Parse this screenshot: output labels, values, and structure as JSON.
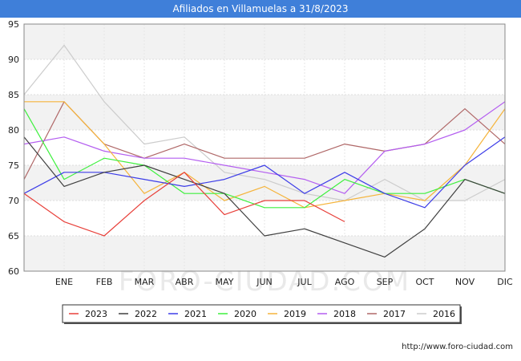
{
  "page": {
    "title": "Afiliados en Villamuelas a 31/8/2023",
    "watermark": "FORO-CIUDAD.COM",
    "source_url": "http://www.foro-ciudad.com"
  },
  "chart_data": {
    "type": "line",
    "title": "Afiliados en Villamuelas a 31/8/2023",
    "categories": [
      "",
      "ENE",
      "FEB",
      "MAR",
      "ABR",
      "MAY",
      "JUN",
      "JUL",
      "AGO",
      "SEP",
      "OCT",
      "NOV",
      "DIC"
    ],
    "ylim": [
      60,
      95
    ],
    "yticks": [
      60,
      65,
      70,
      75,
      80,
      85,
      90,
      95
    ],
    "grid": true,
    "legend_position": "bottom",
    "series": [
      {
        "name": "2023",
        "color": "#e8403a",
        "values": [
          71,
          67,
          65,
          70,
          74,
          68,
          70,
          70,
          67,
          null,
          null,
          null,
          null
        ]
      },
      {
        "name": "2022",
        "color": "#404040",
        "values": [
          79,
          72,
          74,
          75,
          73,
          71,
          65,
          66,
          64,
          62,
          66,
          73,
          71
        ]
      },
      {
        "name": "2021",
        "color": "#3e3ee8",
        "values": [
          71,
          74,
          74,
          73,
          72,
          73,
          75,
          71,
          74,
          71,
          69,
          75,
          79
        ]
      },
      {
        "name": "2020",
        "color": "#3ef03e",
        "values": [
          83,
          73,
          76,
          75,
          71,
          71,
          69,
          69,
          73,
          71,
          71,
          73,
          71
        ]
      },
      {
        "name": "2019",
        "color": "#f5b43c",
        "values": [
          84,
          84,
          78,
          71,
          74,
          70,
          72,
          69,
          70,
          71,
          70,
          75,
          83
        ]
      },
      {
        "name": "2018",
        "color": "#b45ef0",
        "values": [
          78,
          79,
          77,
          76,
          76,
          75,
          74,
          73,
          71,
          77,
          78,
          80,
          84
        ]
      },
      {
        "name": "2017",
        "color": "#b06868",
        "values": [
          73,
          84,
          78,
          76,
          78,
          76,
          76,
          76,
          78,
          77,
          78,
          83,
          78
        ]
      },
      {
        "name": "2016",
        "color": "#cccccc",
        "values": [
          85,
          92,
          84,
          78,
          79,
          74,
          73,
          71,
          70,
          73,
          70,
          70,
          73
        ]
      }
    ]
  }
}
